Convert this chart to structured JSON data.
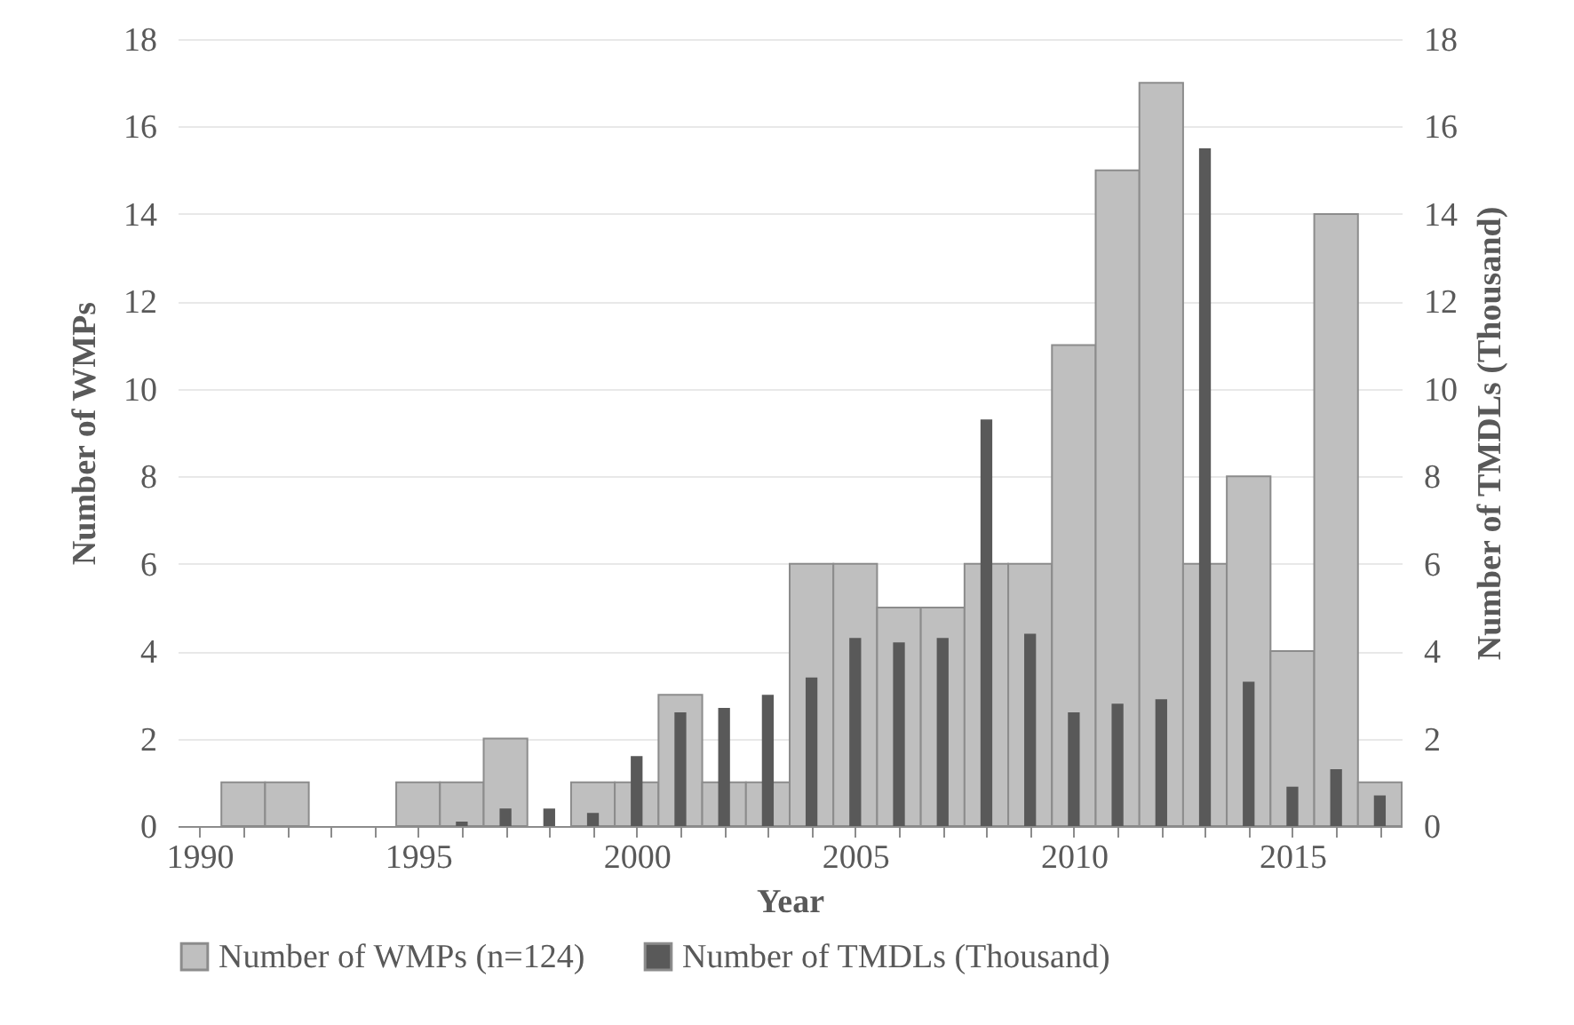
{
  "chart_data": {
    "type": "bar",
    "xlabel": "Year",
    "ylabel": "Number of WMPs",
    "y2label": "Number of TMDLs (Thousand)",
    "x": [
      1991,
      1992,
      1995,
      1996,
      1997,
      1998,
      1999,
      2000,
      2001,
      2002,
      2003,
      2004,
      2005,
      2006,
      2007,
      2008,
      2009,
      2010,
      2011,
      2012,
      2013,
      2014,
      2015,
      2016,
      2017
    ],
    "series": [
      {
        "name": "Number of WMPs (n=124)",
        "color": "#bfbfbf",
        "values": [
          1,
          1,
          1,
          1,
          2,
          null,
          1,
          1,
          3,
          1,
          1,
          6,
          6,
          5,
          5,
          6,
          6,
          11,
          15,
          17,
          6,
          8,
          4,
          14,
          1
        ]
      },
      {
        "name": "Number of TMDLs (Thousand)",
        "color": "#595959",
        "axis": "y2",
        "values": [
          null,
          null,
          null,
          0.1,
          0.4,
          0.4,
          0.3,
          1.6,
          2.6,
          2.7,
          3.0,
          3.4,
          4.3,
          4.2,
          4.3,
          9.3,
          4.4,
          2.6,
          2.8,
          2.9,
          15.5,
          3.3,
          0.9,
          1.3,
          0.7
        ]
      }
    ],
    "xlim": [
      1989.5,
      2017.5
    ],
    "xticks": [
      1990,
      {
        "value": 1991,
        "label": null
      },
      {
        "value": 1992,
        "label": null
      },
      {
        "value": 1993,
        "label": null
      },
      {
        "value": 1994,
        "label": null
      },
      1995,
      {
        "value": 1996,
        "label": null
      },
      {
        "value": 1997,
        "label": null
      },
      {
        "value": 1998,
        "label": null
      },
      {
        "value": 1999,
        "label": null
      },
      2000,
      {
        "value": 2001,
        "label": null
      },
      {
        "value": 2002,
        "label": null
      },
      {
        "value": 2003,
        "label": null
      },
      {
        "value": 2004,
        "label": null
      },
      2005,
      {
        "value": 2006,
        "label": null
      },
      {
        "value": 2007,
        "label": null
      },
      {
        "value": 2008,
        "label": null
      },
      {
        "value": 2009,
        "label": null
      },
      2010,
      {
        "value": 2011,
        "label": null
      },
      {
        "value": 2012,
        "label": null
      },
      {
        "value": 2013,
        "label": null
      },
      {
        "value": 2014,
        "label": null
      },
      2015,
      {
        "value": 2016,
        "label": null
      },
      {
        "value": 2017,
        "label": null
      }
    ],
    "ylim": [
      0,
      18
    ],
    "yticks": [
      0,
      2,
      4,
      6,
      8,
      10,
      12,
      14,
      16,
      18
    ],
    "y2lim": [
      0,
      18
    ],
    "y2ticks": [
      0,
      2,
      4,
      6,
      8,
      10,
      12,
      14,
      16,
      18
    ],
    "grid": "y",
    "legend": "bottom"
  }
}
